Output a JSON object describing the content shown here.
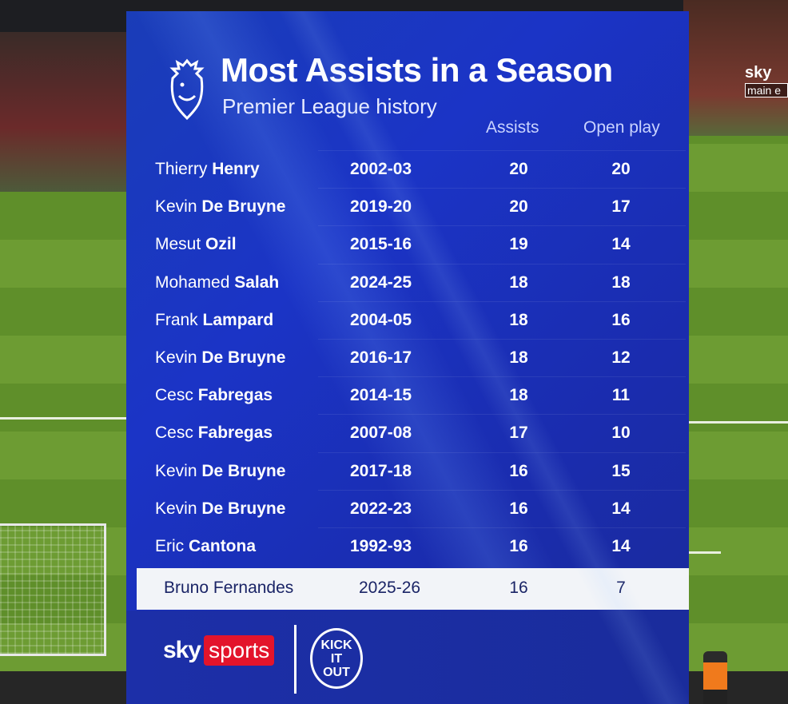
{
  "overlay": {
    "broadcaster_bug": "sky",
    "broadcaster_bug_sub": "main e"
  },
  "graphic": {
    "title": "Most Assists in a Season",
    "subtitle": "Premier League history",
    "logo_icon": "premier-league-lion-icon",
    "columns": {
      "assists": "Assists",
      "open_play": "Open play"
    },
    "rows": [
      {
        "first": "Thierry",
        "last": "Henry",
        "season": "2002-03",
        "assists": "20",
        "open_play": "20"
      },
      {
        "first": "Kevin",
        "last": "De Bruyne",
        "season": "2019-20",
        "assists": "20",
        "open_play": "17"
      },
      {
        "first": "Mesut",
        "last": "Ozil",
        "season": "2015-16",
        "assists": "19",
        "open_play": "14"
      },
      {
        "first": "Mohamed",
        "last": "Salah",
        "season": "2024-25",
        "assists": "18",
        "open_play": "18"
      },
      {
        "first": "Frank",
        "last": "Lampard",
        "season": "2004-05",
        "assists": "18",
        "open_play": "16"
      },
      {
        "first": "Kevin",
        "last": "De Bruyne",
        "season": "2016-17",
        "assists": "18",
        "open_play": "12"
      },
      {
        "first": "Cesc",
        "last": "Fabregas",
        "season": "2014-15",
        "assists": "18",
        "open_play": "11"
      },
      {
        "first": "Cesc",
        "last": "Fabregas",
        "season": "2007-08",
        "assists": "17",
        "open_play": "10"
      },
      {
        "first": "Kevin",
        "last": "De Bruyne",
        "season": "2017-18",
        "assists": "16",
        "open_play": "15"
      },
      {
        "first": "Kevin",
        "last": "De Bruyne",
        "season": "2022-23",
        "assists": "16",
        "open_play": "14"
      },
      {
        "first": "Eric",
        "last": "Cantona",
        "season": "1992-93",
        "assists": "16",
        "open_play": "14"
      }
    ],
    "highlight_row": {
      "first": "Bruno",
      "last": "Fernandes",
      "season": "2025-26",
      "assists": "16",
      "open_play": "7"
    },
    "footer": {
      "sky_text": "sky",
      "sports_text": "sports",
      "kick_it_out": "KICK IT OUT"
    },
    "colors": {
      "background": "#1b34c6",
      "highlight_bg": "#f2f4f8",
      "sky_sports_red": "#e3142b"
    }
  }
}
